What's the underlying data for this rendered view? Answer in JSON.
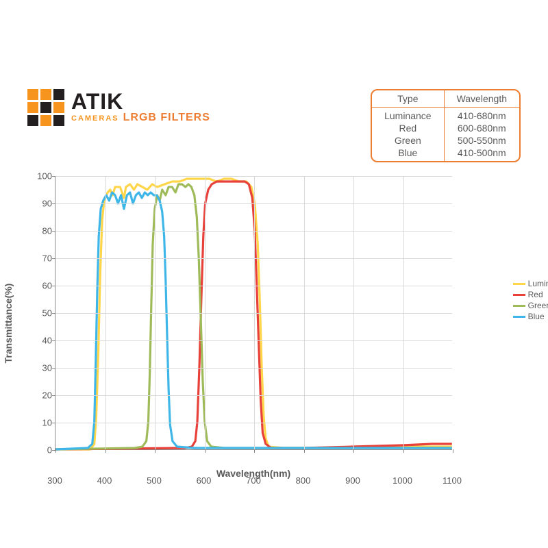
{
  "logo": {
    "squares": [
      "#f7941d",
      "#f7941d",
      "#231f20",
      "#f7941d",
      "#231f20",
      "#f7941d",
      "#231f20",
      "#f7941d",
      "#231f20"
    ],
    "atik": "ATIK",
    "atik_color": "#231f20",
    "cameras": "CAMERAS",
    "cameras_color": "#f7941d",
    "subtitle": "LRGB FILTERS",
    "subtitle_color": "#ed7d31"
  },
  "spec_table": {
    "border_color": "#ed7d31",
    "text_color": "#595959",
    "headers": [
      "Type",
      "Wavelength"
    ],
    "rows": [
      [
        "Luminance",
        "410-680nm"
      ],
      [
        "Red",
        "600-680nm"
      ],
      [
        "Green",
        "500-550nm"
      ],
      [
        "Blue",
        "410-500nm"
      ]
    ]
  },
  "chart": {
    "type": "line",
    "xlabel": "Wavelength(nm)",
    "ylabel": "Transmittance(%)",
    "label_fontsize": 14,
    "tick_fontsize": 13,
    "text_color": "#595959",
    "background_color": "#ffffff",
    "grid_color": "#d9d9d9",
    "axis_color": "#888888",
    "xlim": [
      300,
      1100
    ],
    "ylim": [
      0,
      100
    ],
    "xtick_step": 100,
    "ytick_step": 10,
    "line_width": 3.2,
    "series": [
      {
        "name": "Lumina",
        "legend": "Lumina",
        "color": "#ffd54a",
        "points": [
          [
            300,
            0
          ],
          [
            370,
            0
          ],
          [
            378,
            2
          ],
          [
            382,
            12
          ],
          [
            386,
            35
          ],
          [
            390,
            65
          ],
          [
            394,
            84
          ],
          [
            398,
            91
          ],
          [
            405,
            94
          ],
          [
            410,
            95
          ],
          [
            415,
            93
          ],
          [
            420,
            96
          ],
          [
            430,
            96
          ],
          [
            438,
            92
          ],
          [
            442,
            96
          ],
          [
            450,
            97
          ],
          [
            458,
            95
          ],
          [
            465,
            97
          ],
          [
            475,
            96
          ],
          [
            485,
            95
          ],
          [
            495,
            97
          ],
          [
            505,
            96
          ],
          [
            520,
            97
          ],
          [
            535,
            98
          ],
          [
            550,
            98
          ],
          [
            565,
            99
          ],
          [
            580,
            99
          ],
          [
            595,
            99
          ],
          [
            610,
            99
          ],
          [
            625,
            98
          ],
          [
            640,
            99
          ],
          [
            655,
            99
          ],
          [
            670,
            98
          ],
          [
            685,
            98
          ],
          [
            695,
            96
          ],
          [
            702,
            90
          ],
          [
            708,
            75
          ],
          [
            712,
            55
          ],
          [
            716,
            30
          ],
          [
            720,
            12
          ],
          [
            724,
            4
          ],
          [
            730,
            1
          ],
          [
            760,
            0.5
          ],
          [
            850,
            0.5
          ],
          [
            1000,
            1
          ],
          [
            1100,
            1
          ]
        ]
      },
      {
        "name": "Red",
        "legend": "Red",
        "color": "#e8413a",
        "points": [
          [
            300,
            0
          ],
          [
            560,
            0.5
          ],
          [
            575,
            1
          ],
          [
            582,
            3
          ],
          [
            586,
            10
          ],
          [
            590,
            30
          ],
          [
            594,
            55
          ],
          [
            598,
            78
          ],
          [
            602,
            90
          ],
          [
            608,
            95
          ],
          [
            615,
            97
          ],
          [
            625,
            98
          ],
          [
            640,
            98
          ],
          [
            655,
            98
          ],
          [
            670,
            98
          ],
          [
            682,
            98
          ],
          [
            690,
            97
          ],
          [
            697,
            92
          ],
          [
            702,
            80
          ],
          [
            706,
            60
          ],
          [
            710,
            38
          ],
          [
            714,
            18
          ],
          [
            718,
            6
          ],
          [
            724,
            2
          ],
          [
            735,
            0.5
          ],
          [
            800,
            0.5
          ],
          [
            900,
            1
          ],
          [
            1000,
            1.5
          ],
          [
            1060,
            2
          ],
          [
            1100,
            2
          ]
        ]
      },
      {
        "name": "Green",
        "legend": "Green",
        "color": "#9fbb59",
        "points": [
          [
            300,
            0
          ],
          [
            460,
            0.5
          ],
          [
            475,
            1
          ],
          [
            483,
            3
          ],
          [
            487,
            10
          ],
          [
            490,
            28
          ],
          [
            493,
            52
          ],
          [
            496,
            75
          ],
          [
            500,
            88
          ],
          [
            505,
            93
          ],
          [
            510,
            91
          ],
          [
            515,
            95
          ],
          [
            522,
            93
          ],
          [
            528,
            96
          ],
          [
            535,
            96
          ],
          [
            542,
            94
          ],
          [
            548,
            97
          ],
          [
            555,
            97
          ],
          [
            562,
            96
          ],
          [
            568,
            97
          ],
          [
            574,
            96
          ],
          [
            580,
            93
          ],
          [
            585,
            85
          ],
          [
            589,
            70
          ],
          [
            593,
            48
          ],
          [
            597,
            25
          ],
          [
            601,
            10
          ],
          [
            606,
            3
          ],
          [
            614,
            1
          ],
          [
            640,
            0.5
          ],
          [
            1100,
            0.5
          ]
        ]
      },
      {
        "name": "Blue",
        "legend": "Blue",
        "color": "#3fb6e8",
        "points": [
          [
            300,
            0
          ],
          [
            365,
            0.5
          ],
          [
            374,
            2
          ],
          [
            378,
            10
          ],
          [
            381,
            32
          ],
          [
            384,
            58
          ],
          [
            387,
            78
          ],
          [
            391,
            88
          ],
          [
            396,
            91
          ],
          [
            402,
            93
          ],
          [
            408,
            91
          ],
          [
            414,
            94
          ],
          [
            420,
            93
          ],
          [
            426,
            90
          ],
          [
            432,
            93
          ],
          [
            438,
            88
          ],
          [
            444,
            93
          ],
          [
            450,
            94
          ],
          [
            456,
            90
          ],
          [
            462,
            93
          ],
          [
            468,
            94
          ],
          [
            474,
            92
          ],
          [
            480,
            94
          ],
          [
            486,
            93
          ],
          [
            492,
            94
          ],
          [
            498,
            93
          ],
          [
            504,
            93
          ],
          [
            510,
            91
          ],
          [
            515,
            87
          ],
          [
            519,
            78
          ],
          [
            522,
            62
          ],
          [
            525,
            42
          ],
          [
            528,
            22
          ],
          [
            531,
            9
          ],
          [
            536,
            3
          ],
          [
            545,
            1
          ],
          [
            580,
            0.5
          ],
          [
            1100,
            0.5
          ]
        ]
      }
    ],
    "legend_position": "right"
  }
}
